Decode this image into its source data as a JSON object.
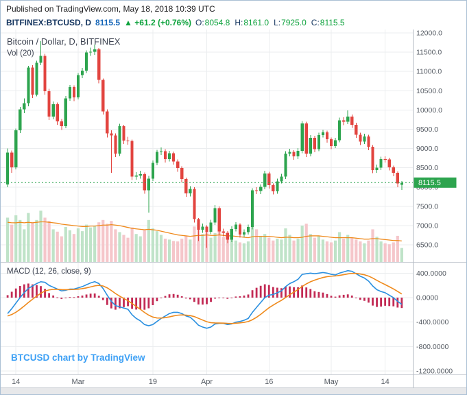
{
  "published_bar": {
    "text": "Published on TradingView.com, May 18, 2018 10:39 UTC"
  },
  "symbol_bar": {
    "symbol": "BITFINEX:BTCUSD, D",
    "last": "8115.5",
    "change": "▲ +61.2 (+0.76%)",
    "o_label": "O:",
    "o": "8054.8",
    "h_label": "H:",
    "h": "8161.0",
    "l_label": "L:",
    "l": "7925.0",
    "c_label": "C:",
    "c": "8115.5"
  },
  "main_pane": {
    "legend_title": "Bitcoin / Dollar, D, BITFINEX",
    "vol_legend": "Vol (20)",
    "last_price_label": "8115.5"
  },
  "macd_pane": {
    "legend": "MACD (12, 26, close, 9)"
  },
  "watermark": "BTCUSD chart by TradingView",
  "colors": {
    "up": "#2da44e",
    "down": "#e2443f",
    "vol_up": "#bfe3c8",
    "vol_down": "#f5c6ca",
    "vol_ma": "#ef8a1c",
    "hist": "#c22a54",
    "macd_line": "#2b90e0",
    "signal_line": "#ef8a1c",
    "grid": "#ebedef",
    "sep": "#c6cbd2",
    "axis_line": "#b4bac3",
    "axis_text": "#555b63",
    "last_line": "#2da44e",
    "badge_bg": "#2da44e",
    "badge_text": "#ffffff",
    "strip_bg": "#e7e8ea"
  },
  "chart_data": [
    {
      "type": "candlestick+volume",
      "title": "Bitcoin / Dollar, D, BITFINEX",
      "exchange": "BITFINEX",
      "interval": "D",
      "last_price": 8115.5,
      "price_ticks": [
        12000,
        11500,
        11000,
        10500,
        10000,
        9500,
        9000,
        8500,
        8000,
        7500,
        7000,
        6500
      ],
      "tick_labels": [
        "12000.0",
        "11500.0",
        "11000.0",
        "10500.0",
        "10000.0",
        "9500.0",
        "9000.0",
        "8500.0",
        "8000.0",
        "7500.0",
        "7000.0",
        "6500.0"
      ],
      "time_ticks": [
        {
          "i": 2,
          "label": "14"
        },
        {
          "i": 17,
          "label": "Mar"
        },
        {
          "i": 35,
          "label": "19"
        },
        {
          "i": 48,
          "label": "Apr"
        },
        {
          "i": 63,
          "label": "16"
        },
        {
          "i": 78,
          "label": "May"
        },
        {
          "i": 91,
          "label": "14"
        }
      ],
      "ohlc_order": [
        "open",
        "high",
        "low",
        "close"
      ],
      "candles": [
        [
          8070,
          9000,
          8000,
          8891
        ],
        [
          8891,
          8950,
          8370,
          8516
        ],
        [
          8516,
          9520,
          8455,
          9477
        ],
        [
          9477,
          10080,
          9400,
          10016
        ],
        [
          10016,
          10300,
          9920,
          10178
        ],
        [
          10178,
          11150,
          10100,
          11097
        ],
        [
          11097,
          11160,
          10310,
          10397
        ],
        [
          10397,
          11280,
          10350,
          11225
        ],
        [
          11225,
          11784,
          11160,
          11403
        ],
        [
          11403,
          11460,
          10400,
          10487
        ],
        [
          10487,
          10550,
          9740,
          9830
        ],
        [
          9830,
          10220,
          9760,
          10151
        ],
        [
          10151,
          10190,
          9620,
          9704
        ],
        [
          9704,
          9770,
          9480,
          9580
        ],
        [
          9580,
          10360,
          9530,
          10303
        ],
        [
          10303,
          10650,
          10240,
          10594
        ],
        [
          10594,
          10640,
          10230,
          10325
        ],
        [
          10325,
          10960,
          10270,
          10905
        ],
        [
          10905,
          11090,
          10830,
          11021
        ],
        [
          11021,
          11550,
          10960,
          11489
        ],
        [
          11489,
          11620,
          11400,
          11512
        ],
        [
          11512,
          11699,
          11430,
          11573
        ],
        [
          11573,
          11610,
          10690,
          10779
        ],
        [
          10779,
          10820,
          9880,
          9965
        ],
        [
          9965,
          10020,
          9290,
          9395
        ],
        [
          9395,
          9470,
          8371,
          9337
        ],
        [
          9337,
          9390,
          8780,
          8866
        ],
        [
          8866,
          9640,
          8810,
          9578
        ],
        [
          9578,
          9620,
          9120,
          9205
        ],
        [
          9205,
          9300,
          9100,
          9194
        ],
        [
          9194,
          9230,
          8180,
          8269
        ],
        [
          8269,
          8390,
          8190,
          8300
        ],
        [
          8300,
          8420,
          8220,
          8338
        ],
        [
          8338,
          8380,
          7830,
          7916
        ],
        [
          7916,
          8290,
          7335,
          8223
        ],
        [
          8223,
          8690,
          8160,
          8630
        ],
        [
          8630,
          8970,
          8570,
          8913
        ],
        [
          8913,
          9030,
          8830,
          8929
        ],
        [
          8929,
          8980,
          8640,
          8728
        ],
        [
          8728,
          8940,
          8660,
          8879
        ],
        [
          8879,
          8920,
          8580,
          8668
        ],
        [
          8668,
          8720,
          8400,
          8495
        ],
        [
          8495,
          8540,
          8120,
          8209
        ],
        [
          8209,
          8250,
          7750,
          7833
        ],
        [
          7833,
          8020,
          7760,
          7954
        ],
        [
          7954,
          8000,
          7080,
          7165
        ],
        [
          7165,
          7200,
          6600,
          6890
        ],
        [
          6890,
          7050,
          6810,
          6973
        ],
        [
          6973,
          7010,
          6425,
          6844
        ],
        [
          6844,
          7150,
          6780,
          7083
        ],
        [
          7083,
          7530,
          7020,
          7456
        ],
        [
          7456,
          7500,
          6770,
          6853
        ],
        [
          6853,
          6920,
          6720,
          6811
        ],
        [
          6811,
          6860,
          6543,
          6636
        ],
        [
          6636,
          6980,
          6570,
          6911
        ],
        [
          6911,
          7090,
          6850,
          7023
        ],
        [
          7023,
          7060,
          6690,
          6770
        ],
        [
          6770,
          6900,
          6710,
          6834
        ],
        [
          6834,
          7030,
          6770,
          6968
        ],
        [
          6968,
          7970,
          6900,
          7916
        ],
        [
          7916,
          8000,
          7820,
          7895
        ],
        [
          7895,
          8070,
          7820,
          8003
        ],
        [
          8003,
          8420,
          7940,
          8355
        ],
        [
          8355,
          8400,
          7960,
          8048
        ],
        [
          8048,
          8090,
          7810,
          7892
        ],
        [
          7892,
          8220,
          7830,
          8152
        ],
        [
          8152,
          8340,
          8090,
          8274
        ],
        [
          8274,
          8930,
          8210,
          8866
        ],
        [
          8866,
          8990,
          8800,
          8917
        ],
        [
          8917,
          8960,
          8710,
          8795
        ],
        [
          8795,
          9010,
          8730,
          8940
        ],
        [
          8940,
          9710,
          8880,
          9652
        ],
        [
          9652,
          9700,
          8780,
          8864
        ],
        [
          8864,
          9350,
          8800,
          9281
        ],
        [
          9281,
          9330,
          8900,
          8987
        ],
        [
          8987,
          9410,
          8930,
          9348
        ],
        [
          9348,
          9480,
          9290,
          9419
        ],
        [
          9419,
          9460,
          9150,
          9240
        ],
        [
          9240,
          9290,
          8980,
          9067
        ],
        [
          9067,
          9280,
          9010,
          9219
        ],
        [
          9219,
          9800,
          9160,
          9734
        ],
        [
          9734,
          9810,
          9610,
          9692
        ],
        [
          9692,
          9990,
          9630,
          9826
        ],
        [
          9826,
          9880,
          9540,
          9619
        ],
        [
          9619,
          9670,
          9280,
          9362
        ],
        [
          9362,
          9410,
          9090,
          9180
        ],
        [
          9180,
          9380,
          9120,
          9316
        ],
        [
          9316,
          9360,
          8960,
          9043
        ],
        [
          9043,
          9090,
          8360,
          8441
        ],
        [
          8441,
          8580,
          8370,
          8504
        ],
        [
          8504,
          8790,
          8440,
          8723
        ],
        [
          8723,
          8800,
          8640,
          8716
        ],
        [
          8716,
          8760,
          8430,
          8510
        ],
        [
          8510,
          8560,
          8280,
          8368
        ],
        [
          8368,
          8410,
          8000,
          8094
        ],
        [
          8054.8,
          8161.0,
          7925.0,
          8115.5
        ]
      ],
      "volume": [
        95,
        80,
        100,
        90,
        70,
        105,
        85,
        90,
        110,
        95,
        88,
        70,
        65,
        55,
        75,
        68,
        60,
        72,
        66,
        80,
        74,
        78,
        85,
        90,
        82,
        88,
        70,
        64,
        58,
        52,
        74,
        60,
        55,
        68,
        90,
        72,
        66,
        58,
        50,
        48,
        45,
        44,
        50,
        56,
        48,
        76,
        84,
        60,
        66,
        52,
        62,
        70,
        54,
        48,
        58,
        46,
        42,
        40,
        44,
        92,
        70,
        56,
        60,
        52,
        46,
        50,
        48,
        72,
        58,
        46,
        50,
        78,
        82,
        60,
        52,
        56,
        48,
        44,
        42,
        46,
        64,
        50,
        58,
        52,
        48,
        44,
        40,
        46,
        70,
        54,
        44,
        40,
        38,
        42,
        56,
        30
      ],
      "volume_ma20": [
        85,
        84,
        84,
        85,
        84,
        85,
        84,
        85,
        86,
        86,
        85,
        84,
        83,
        81,
        80,
        79,
        78,
        77,
        76,
        76,
        77,
        77,
        78,
        79,
        79,
        80,
        79,
        78,
        76,
        74,
        72,
        71,
        70,
        69,
        70,
        69,
        68,
        66,
        64,
        62,
        60,
        58,
        57,
        56,
        55,
        56,
        57,
        57,
        58,
        57,
        57,
        58,
        57,
        56,
        56,
        55,
        54,
        53,
        52,
        54,
        55,
        55,
        55,
        55,
        54,
        53,
        52,
        53,
        53,
        52,
        52,
        53,
        55,
        56,
        56,
        56,
        55,
        54,
        53,
        52,
        52,
        52,
        52,
        52,
        51,
        50,
        49,
        49,
        50,
        50,
        49,
        48,
        47,
        46,
        46,
        45
      ]
    },
    {
      "type": "macd",
      "legend": "MACD (12, 26, close, 9)",
      "ticks": [
        400,
        0,
        -400,
        -800,
        -1200
      ],
      "tick_labels": [
        "400.0000",
        "0.0000",
        "-400.0000",
        "-800.0000",
        "-1200.0000"
      ],
      "macd": [
        -260,
        -180,
        -90,
        0,
        80,
        150,
        190,
        230,
        260,
        250,
        200,
        170,
        140,
        110,
        120,
        140,
        140,
        160,
        180,
        210,
        240,
        260,
        230,
        150,
        40,
        -60,
        -130,
        -150,
        -170,
        -190,
        -280,
        -340,
        -380,
        -440,
        -460,
        -440,
        -390,
        -340,
        -300,
        -260,
        -240,
        -240,
        -260,
        -300,
        -320,
        -380,
        -450,
        -480,
        -500,
        -480,
        -430,
        -420,
        -420,
        -440,
        -430,
        -400,
        -390,
        -370,
        -340,
        -240,
        -160,
        -80,
        0,
        40,
        50,
        80,
        110,
        180,
        230,
        260,
        300,
        380,
        390,
        400,
        390,
        400,
        410,
        400,
        380,
        370,
        400,
        420,
        440,
        430,
        390,
        350,
        320,
        270,
        190,
        130,
        100,
        80,
        40,
        0,
        -60,
        -110
      ],
      "signal": [
        -300,
        -276,
        -239,
        -191,
        -137,
        -80,
        -26,
        25,
        72,
        108,
        126,
        135,
        136,
        131,
        129,
        131,
        133,
        138,
        146,
        159,
        175,
        192,
        200,
        190,
        160,
        116,
        67,
        24,
        -15,
        -50,
        -96,
        -145,
        -192,
        -242,
        -286,
        -317,
        -332,
        -334,
        -327,
        -314,
        -299,
        -287,
        -282,
        -286,
        -293,
        -310,
        -338,
        -366,
        -393,
        -410,
        -414,
        -415,
        -416,
        -421,
        -423,
        -418,
        -412,
        -404,
        -391,
        -361,
        -321,
        -273,
        -218,
        -166,
        -123,
        -82,
        -44,
        1,
        47,
        90,
        132,
        182,
        224,
        259,
        285,
        308,
        328,
        342,
        350,
        354,
        363,
        374,
        387,
        396,
        395,
        386,
        373,
        352,
        320,
        282,
        246,
        213,
        178,
        142,
        102,
        60
      ]
    }
  ]
}
